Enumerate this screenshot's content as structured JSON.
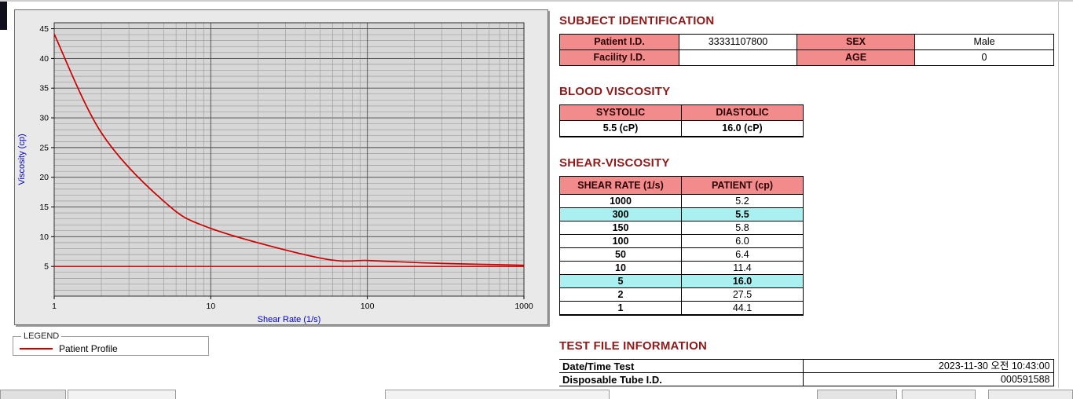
{
  "colors": {
    "title_maroon": "#8f1a1a",
    "header_pink": "#f28b8b",
    "highlight_cyan": "#aaf0f0",
    "curve_red": "#cc0000",
    "axis_blue": "#0000c8",
    "plot_bg": "#d7d7d7",
    "grid_minor": "#909090",
    "grid_major": "#474747"
  },
  "chart_data": {
    "type": "line",
    "title": "",
    "xlabel": "Shear Rate (1/s)",
    "ylabel": "Viscosity (cp)",
    "x_scale": "log",
    "xlim": [
      1,
      1000
    ],
    "ylim": [
      0,
      46
    ],
    "x_ticks": [
      1,
      10,
      100,
      1000
    ],
    "y_ticks": [
      5,
      10,
      15,
      20,
      25,
      30,
      35,
      40,
      45
    ],
    "grid": true,
    "x": [
      1,
      2,
      5,
      10,
      50,
      100,
      150,
      300,
      1000
    ],
    "series": [
      {
        "name": "Patient Profile",
        "values": [
          44.1,
          27.5,
          16.0,
          11.4,
          6.4,
          6.0,
          5.8,
          5.5,
          5.2
        ]
      }
    ],
    "reference_line_y": 5.0,
    "legend_position": "below-left"
  },
  "legend": {
    "title": "LEGEND",
    "series_label": "Patient Profile"
  },
  "subject": {
    "title": "SUBJECT IDENTIFICATION",
    "rows": [
      {
        "label1": "Patient I.D.",
        "value1": "33331107800",
        "label2": "SEX",
        "value2": "Male"
      },
      {
        "label1": "Facility I.D.",
        "value1": "",
        "label2": "AGE",
        "value2": "0"
      }
    ]
  },
  "blood_viscosity": {
    "title": "BLOOD VISCOSITY",
    "headers": [
      "SYSTOLIC",
      "DIASTOLIC"
    ],
    "values": [
      "5.5 (cP)",
      "16.0 (cP)"
    ]
  },
  "shear_viscosity": {
    "title": "SHEAR-VISCOSITY",
    "headers": [
      "SHEAR RATE (1/s)",
      "PATIENT (cp)"
    ],
    "rows": [
      {
        "rate": "1000",
        "cp": "5.2",
        "highlight": false
      },
      {
        "rate": "300",
        "cp": "5.5",
        "highlight": true
      },
      {
        "rate": "150",
        "cp": "5.8",
        "highlight": false
      },
      {
        "rate": "100",
        "cp": "6.0",
        "highlight": false
      },
      {
        "rate": "50",
        "cp": "6.4",
        "highlight": false
      },
      {
        "rate": "10",
        "cp": "11.4",
        "highlight": false
      },
      {
        "rate": "5",
        "cp": "16.0",
        "highlight": true
      },
      {
        "rate": "2",
        "cp": "27.5",
        "highlight": false
      },
      {
        "rate": "1",
        "cp": "44.1",
        "highlight": false
      }
    ]
  },
  "test_file": {
    "title": "TEST FILE INFORMATION",
    "rows": [
      {
        "label": "Date/Time Test",
        "value": "2023-11-30  오전 10:43:00"
      },
      {
        "label": "Disposable Tube I.D.",
        "value": "000591588"
      }
    ]
  }
}
